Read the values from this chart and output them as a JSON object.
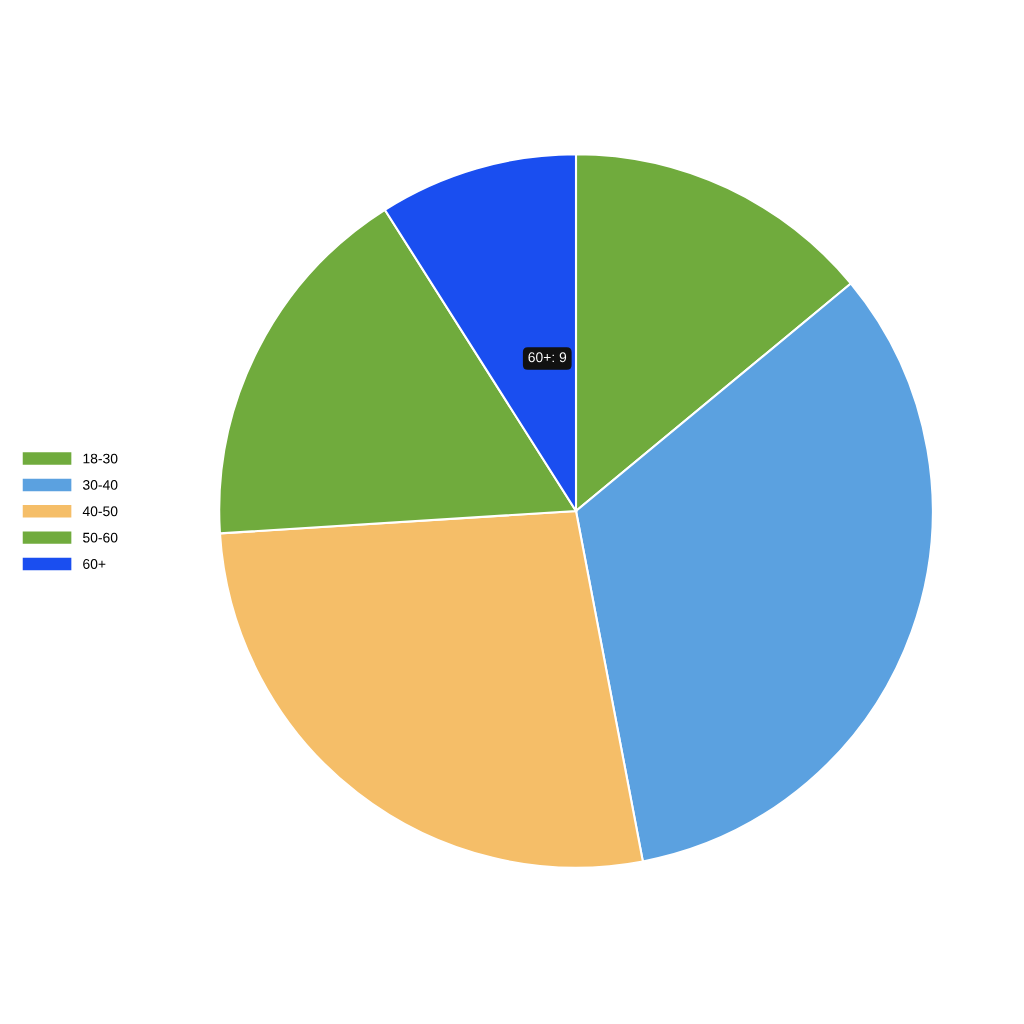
{
  "chart_data": {
    "type": "pie",
    "categories": [
      "18-30",
      "30-40",
      "40-50",
      "50-60",
      "60+"
    ],
    "values": [
      14,
      33,
      27,
      17,
      9
    ],
    "colors": [
      "#70ab3d",
      "#5ba1e0",
      "#f5be68",
      "#70ab3d",
      "#1a4ef0"
    ],
    "legend": "left",
    "annotations": [
      "60+: 9"
    ]
  }
}
